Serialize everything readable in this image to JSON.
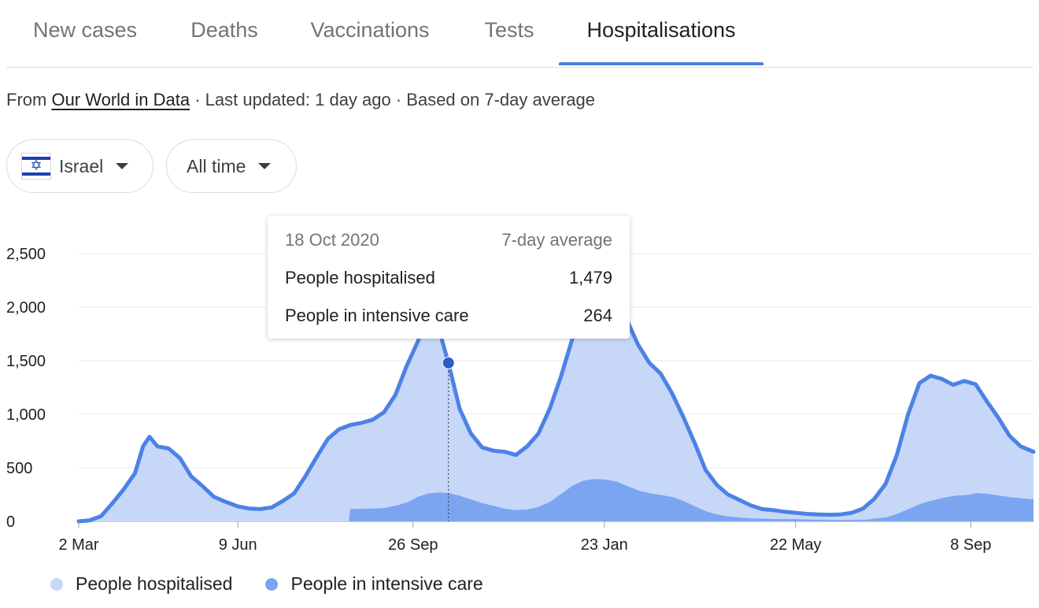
{
  "tabs": [
    {
      "label": "New cases"
    },
    {
      "label": "Deaths"
    },
    {
      "label": "Vaccinations"
    },
    {
      "label": "Tests"
    },
    {
      "label": "Hospitalisations",
      "active": true
    }
  ],
  "source": {
    "prefix": "From ",
    "link": "Our World in Data",
    "suffix": " · Last updated: 1 day ago · Based on 7-day average"
  },
  "filters": {
    "country": "Israel",
    "country_flag_icon": "israel-flag-icon",
    "range": "All time"
  },
  "tooltip": {
    "date": "18 Oct 2020",
    "basis": "7-day average",
    "rows": [
      {
        "label": "People hospitalised",
        "value": "1,479"
      },
      {
        "label": "People in intensive care",
        "value": "264"
      }
    ]
  },
  "colors": {
    "hospitalised_fill": "#c6d7f8",
    "hospitalised_line": "#4c82e6",
    "icu_fill": "#7ba5f1",
    "accent": "#4c82e6"
  },
  "chart_data": {
    "type": "area",
    "ylim": [
      0,
      2500
    ],
    "y_ticks": [
      "0",
      "500",
      "1,000",
      "1,500",
      "2,000",
      "2,500"
    ],
    "y_tick_values": [
      0,
      500,
      1000,
      1500,
      2000,
      2500
    ],
    "x_ticks": [
      "2 Mar",
      "9 Jun",
      "26 Sep",
      "23 Jan",
      "22 May",
      "8 Sep"
    ],
    "x_tick_dates": [
      "2020-03-02",
      "2020-06-09",
      "2020-09-26",
      "2021-01-23",
      "2021-05-22",
      "2021-09-08"
    ],
    "x_range": [
      "2020-03-02",
      "2021-10-17"
    ],
    "grid": true,
    "legend_position": "bottom-left",
    "highlight": {
      "date": "2020-10-18",
      "value": 1479
    },
    "series": [
      {
        "name": "People hospitalised",
        "points": [
          [
            "2020-03-02",
            0
          ],
          [
            "2020-03-09",
            10
          ],
          [
            "2020-03-16",
            50
          ],
          [
            "2020-03-23",
            170
          ],
          [
            "2020-03-30",
            300
          ],
          [
            "2020-04-06",
            450
          ],
          [
            "2020-04-11",
            700
          ],
          [
            "2020-04-15",
            790
          ],
          [
            "2020-04-20",
            700
          ],
          [
            "2020-04-27",
            680
          ],
          [
            "2020-05-04",
            590
          ],
          [
            "2020-05-11",
            420
          ],
          [
            "2020-05-18",
            330
          ],
          [
            "2020-05-25",
            230
          ],
          [
            "2020-06-01",
            185
          ],
          [
            "2020-06-09",
            140
          ],
          [
            "2020-06-16",
            120
          ],
          [
            "2020-06-23",
            115
          ],
          [
            "2020-06-30",
            130
          ],
          [
            "2020-07-07",
            190
          ],
          [
            "2020-07-14",
            260
          ],
          [
            "2020-07-21",
            420
          ],
          [
            "2020-07-28",
            600
          ],
          [
            "2020-08-04",
            770
          ],
          [
            "2020-08-11",
            860
          ],
          [
            "2020-08-18",
            900
          ],
          [
            "2020-08-25",
            920
          ],
          [
            "2020-09-01",
            950
          ],
          [
            "2020-09-08",
            1020
          ],
          [
            "2020-09-15",
            1180
          ],
          [
            "2020-09-22",
            1450
          ],
          [
            "2020-09-29",
            1680
          ],
          [
            "2020-10-03",
            1850
          ],
          [
            "2020-10-08",
            1930
          ],
          [
            "2020-10-12",
            1800
          ],
          [
            "2020-10-18",
            1479
          ],
          [
            "2020-10-25",
            1050
          ],
          [
            "2020-11-01",
            820
          ],
          [
            "2020-11-08",
            690
          ],
          [
            "2020-11-15",
            660
          ],
          [
            "2020-11-22",
            650
          ],
          [
            "2020-11-29",
            620
          ],
          [
            "2020-12-06",
            700
          ],
          [
            "2020-12-13",
            820
          ],
          [
            "2020-12-20",
            1050
          ],
          [
            "2020-12-27",
            1350
          ],
          [
            "2021-01-03",
            1700
          ],
          [
            "2021-01-10",
            1950
          ],
          [
            "2021-01-17",
            2090
          ],
          [
            "2021-01-23",
            2130
          ],
          [
            "2021-01-30",
            2080
          ],
          [
            "2021-02-06",
            1880
          ],
          [
            "2021-02-13",
            1650
          ],
          [
            "2021-02-20",
            1480
          ],
          [
            "2021-02-27",
            1380
          ],
          [
            "2021-03-06",
            1200
          ],
          [
            "2021-03-13",
            980
          ],
          [
            "2021-03-20",
            740
          ],
          [
            "2021-03-27",
            480
          ],
          [
            "2021-04-03",
            340
          ],
          [
            "2021-04-10",
            250
          ],
          [
            "2021-04-17",
            200
          ],
          [
            "2021-04-24",
            150
          ],
          [
            "2021-05-01",
            115
          ],
          [
            "2021-05-08",
            105
          ],
          [
            "2021-05-15",
            90
          ],
          [
            "2021-05-22",
            80
          ],
          [
            "2021-05-29",
            70
          ],
          [
            "2021-06-05",
            65
          ],
          [
            "2021-06-12",
            62
          ],
          [
            "2021-06-19",
            65
          ],
          [
            "2021-06-26",
            80
          ],
          [
            "2021-07-03",
            120
          ],
          [
            "2021-07-10",
            210
          ],
          [
            "2021-07-17",
            350
          ],
          [
            "2021-07-24",
            620
          ],
          [
            "2021-07-31",
            1000
          ],
          [
            "2021-08-07",
            1290
          ],
          [
            "2021-08-14",
            1360
          ],
          [
            "2021-08-21",
            1330
          ],
          [
            "2021-08-28",
            1275
          ],
          [
            "2021-09-04",
            1310
          ],
          [
            "2021-09-11",
            1280
          ],
          [
            "2021-09-18",
            1120
          ],
          [
            "2021-09-25",
            970
          ],
          [
            "2021-10-02",
            800
          ],
          [
            "2021-10-09",
            700
          ],
          [
            "2021-10-17",
            650
          ]
        ]
      },
      {
        "name": "People in intensive care",
        "points": [
          [
            "2020-08-17",
            0
          ],
          [
            "2020-08-18",
            115
          ],
          [
            "2020-08-25",
            118
          ],
          [
            "2020-09-01",
            120
          ],
          [
            "2020-09-08",
            125
          ],
          [
            "2020-09-15",
            145
          ],
          [
            "2020-09-22",
            175
          ],
          [
            "2020-09-29",
            230
          ],
          [
            "2020-10-06",
            262
          ],
          [
            "2020-10-13",
            270
          ],
          [
            "2020-10-18",
            264
          ],
          [
            "2020-10-25",
            240
          ],
          [
            "2020-11-01",
            205
          ],
          [
            "2020-11-08",
            170
          ],
          [
            "2020-11-15",
            145
          ],
          [
            "2020-11-22",
            118
          ],
          [
            "2020-11-29",
            105
          ],
          [
            "2020-12-06",
            110
          ],
          [
            "2020-12-13",
            135
          ],
          [
            "2020-12-20",
            180
          ],
          [
            "2020-12-27",
            255
          ],
          [
            "2021-01-03",
            330
          ],
          [
            "2021-01-10",
            380
          ],
          [
            "2021-01-17",
            395
          ],
          [
            "2021-01-24",
            390
          ],
          [
            "2021-01-31",
            370
          ],
          [
            "2021-02-07",
            325
          ],
          [
            "2021-02-14",
            285
          ],
          [
            "2021-02-21",
            260
          ],
          [
            "2021-02-28",
            245
          ],
          [
            "2021-03-07",
            225
          ],
          [
            "2021-03-14",
            185
          ],
          [
            "2021-03-21",
            135
          ],
          [
            "2021-03-28",
            90
          ],
          [
            "2021-04-04",
            62
          ],
          [
            "2021-04-11",
            45
          ],
          [
            "2021-04-18",
            35
          ],
          [
            "2021-04-25",
            28
          ],
          [
            "2021-05-09",
            22
          ],
          [
            "2021-05-23",
            20
          ],
          [
            "2021-06-06",
            15
          ],
          [
            "2021-06-20",
            12
          ],
          [
            "2021-07-04",
            15
          ],
          [
            "2021-07-18",
            40
          ],
          [
            "2021-07-25",
            75
          ],
          [
            "2021-08-01",
            120
          ],
          [
            "2021-08-08",
            165
          ],
          [
            "2021-08-15",
            195
          ],
          [
            "2021-08-22",
            220
          ],
          [
            "2021-08-29",
            240
          ],
          [
            "2021-09-05",
            245
          ],
          [
            "2021-09-12",
            265
          ],
          [
            "2021-09-19",
            255
          ],
          [
            "2021-09-26",
            240
          ],
          [
            "2021-10-03",
            225
          ],
          [
            "2021-10-10",
            215
          ],
          [
            "2021-10-17",
            205
          ]
        ]
      }
    ]
  }
}
